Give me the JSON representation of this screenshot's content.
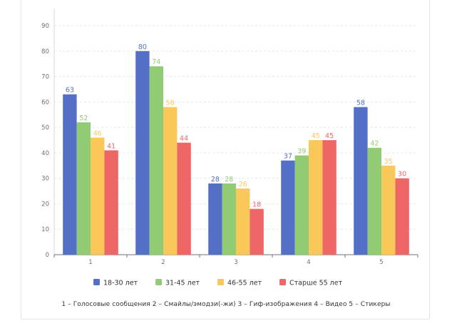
{
  "chart_data": {
    "type": "bar",
    "categories": [
      "1",
      "2",
      "3",
      "4",
      "5"
    ],
    "series": [
      {
        "name": "18-30 лет",
        "color": "#5470c6",
        "values": [
          63,
          80,
          28,
          37,
          58
        ]
      },
      {
        "name": "31-45 лет",
        "color": "#91cc75",
        "values": [
          52,
          74,
          28,
          39,
          42
        ]
      },
      {
        "name": "46-55 лет",
        "color": "#fac858",
        "values": [
          46,
          58,
          26,
          45,
          35
        ]
      },
      {
        "name": "Старше 55 лет",
        "color": "#ee6666",
        "values": [
          41,
          44,
          18,
          45,
          30
        ]
      }
    ],
    "ylim": [
      0,
      90
    ],
    "yticks": [
      0,
      10,
      20,
      30,
      40,
      50,
      60,
      70,
      80,
      90
    ],
    "grid": true,
    "legend_position": "bottom",
    "note": "1 – Голосовые сообщения    2 – Смайлы/эмодзи(-жи)    3 – Гиф-изображения    4 – Видео    5 – Стикеры"
  }
}
